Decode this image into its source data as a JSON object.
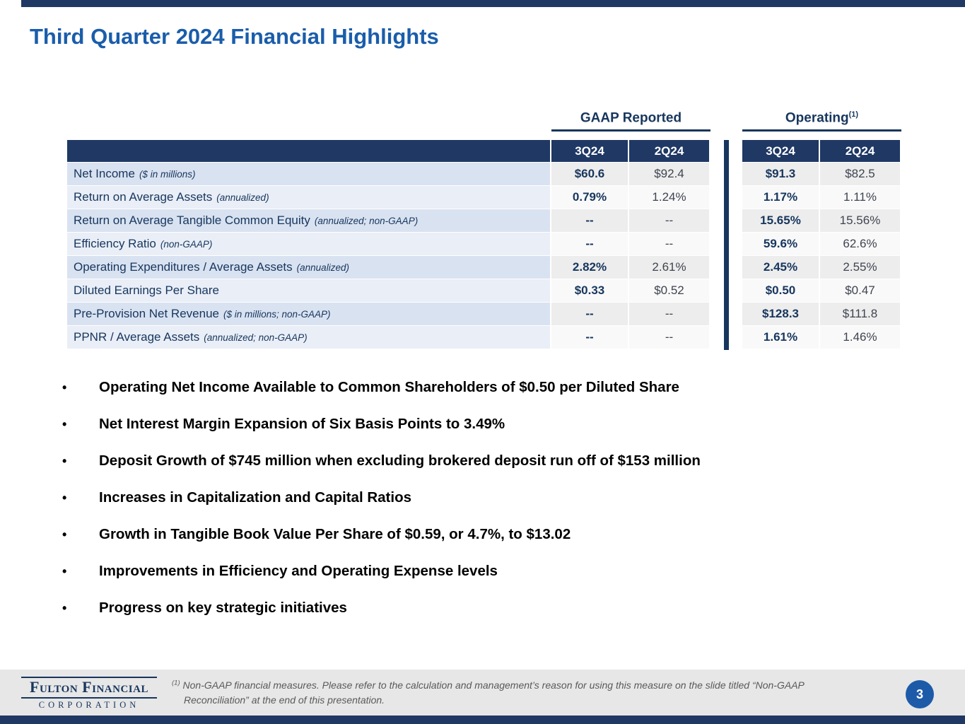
{
  "colors": {
    "navy": "#1f3864",
    "title_blue": "#1a5dab",
    "band_blue": "#d9e2f1",
    "band_gray": "#ededed",
    "footer_gray": "#e7e7e7",
    "badge_blue": "#1d5ba9"
  },
  "title": "Third Quarter 2024 Financial Highlights",
  "bullet_char": "•",
  "table": {
    "group_headers": [
      {
        "label": "GAAP Reported",
        "superscript": ""
      },
      {
        "label": "Operating",
        "superscript": "(1)"
      }
    ],
    "column_headers": [
      "3Q24",
      "2Q24",
      "3Q24",
      "2Q24"
    ],
    "rows": [
      {
        "label": "Net Income",
        "qualifier": "($ in millions)",
        "values": [
          "$60.6",
          "$92.4",
          "$91.3",
          "$82.5"
        ]
      },
      {
        "label": "Return on Average Assets",
        "qualifier": "(annualized)",
        "values": [
          "0.79%",
          "1.24%",
          "1.17%",
          "1.11%"
        ]
      },
      {
        "label": "Return on Average Tangible Common Equity",
        "qualifier": "(annualized; non-GAAP)",
        "values": [
          "--",
          "--",
          "15.65%",
          "15.56%"
        ]
      },
      {
        "label": "Efficiency Ratio",
        "qualifier": "(non-GAAP)",
        "values": [
          "--",
          "--",
          "59.6%",
          "62.6%"
        ]
      },
      {
        "label": "Operating Expenditures / Average Assets",
        "qualifier": "(annualized)",
        "values": [
          "2.82%",
          "2.61%",
          "2.45%",
          "2.55%"
        ]
      },
      {
        "label": "Diluted Earnings Per Share",
        "qualifier": "",
        "values": [
          "$0.33",
          "$0.52",
          "$0.50",
          "$0.47"
        ]
      },
      {
        "label": "Pre-Provision Net Revenue",
        "qualifier": "($ in millions; non-GAAP)",
        "values": [
          "--",
          "--",
          "$128.3",
          "$111.8"
        ]
      },
      {
        "label": "PPNR / Average Assets",
        "qualifier": "(annualized; non-GAAP)",
        "values": [
          "--",
          "--",
          "1.61%",
          "1.46%"
        ]
      }
    ]
  },
  "bullets": [
    "Operating Net Income Available to Common Shareholders of $0.50 per Diluted Share",
    "Net Interest Margin Expansion of Six Basis Points to 3.49%",
    "Deposit Growth of $745 million when excluding brokered deposit run off of $153 million",
    "Increases in Capitalization and Capital Ratios",
    "Growth in Tangible Book Value Per Share of $0.59, or 4.7%, to $13.02",
    "Improvements in Efficiency and Operating Expense levels",
    "Progress on key strategic initiatives"
  ],
  "footer": {
    "logo": {
      "name": "Fulton Financial",
      "subtitle": "CORPORATION"
    },
    "footnote": {
      "marker": "(1)",
      "line1": "Non-GAAP financial measures.  Please refer to the calculation and management’s reason for using this measure on the slide titled “Non-GAAP",
      "line2": "Reconciliation” at the end of this presentation."
    },
    "page_number": "3"
  }
}
